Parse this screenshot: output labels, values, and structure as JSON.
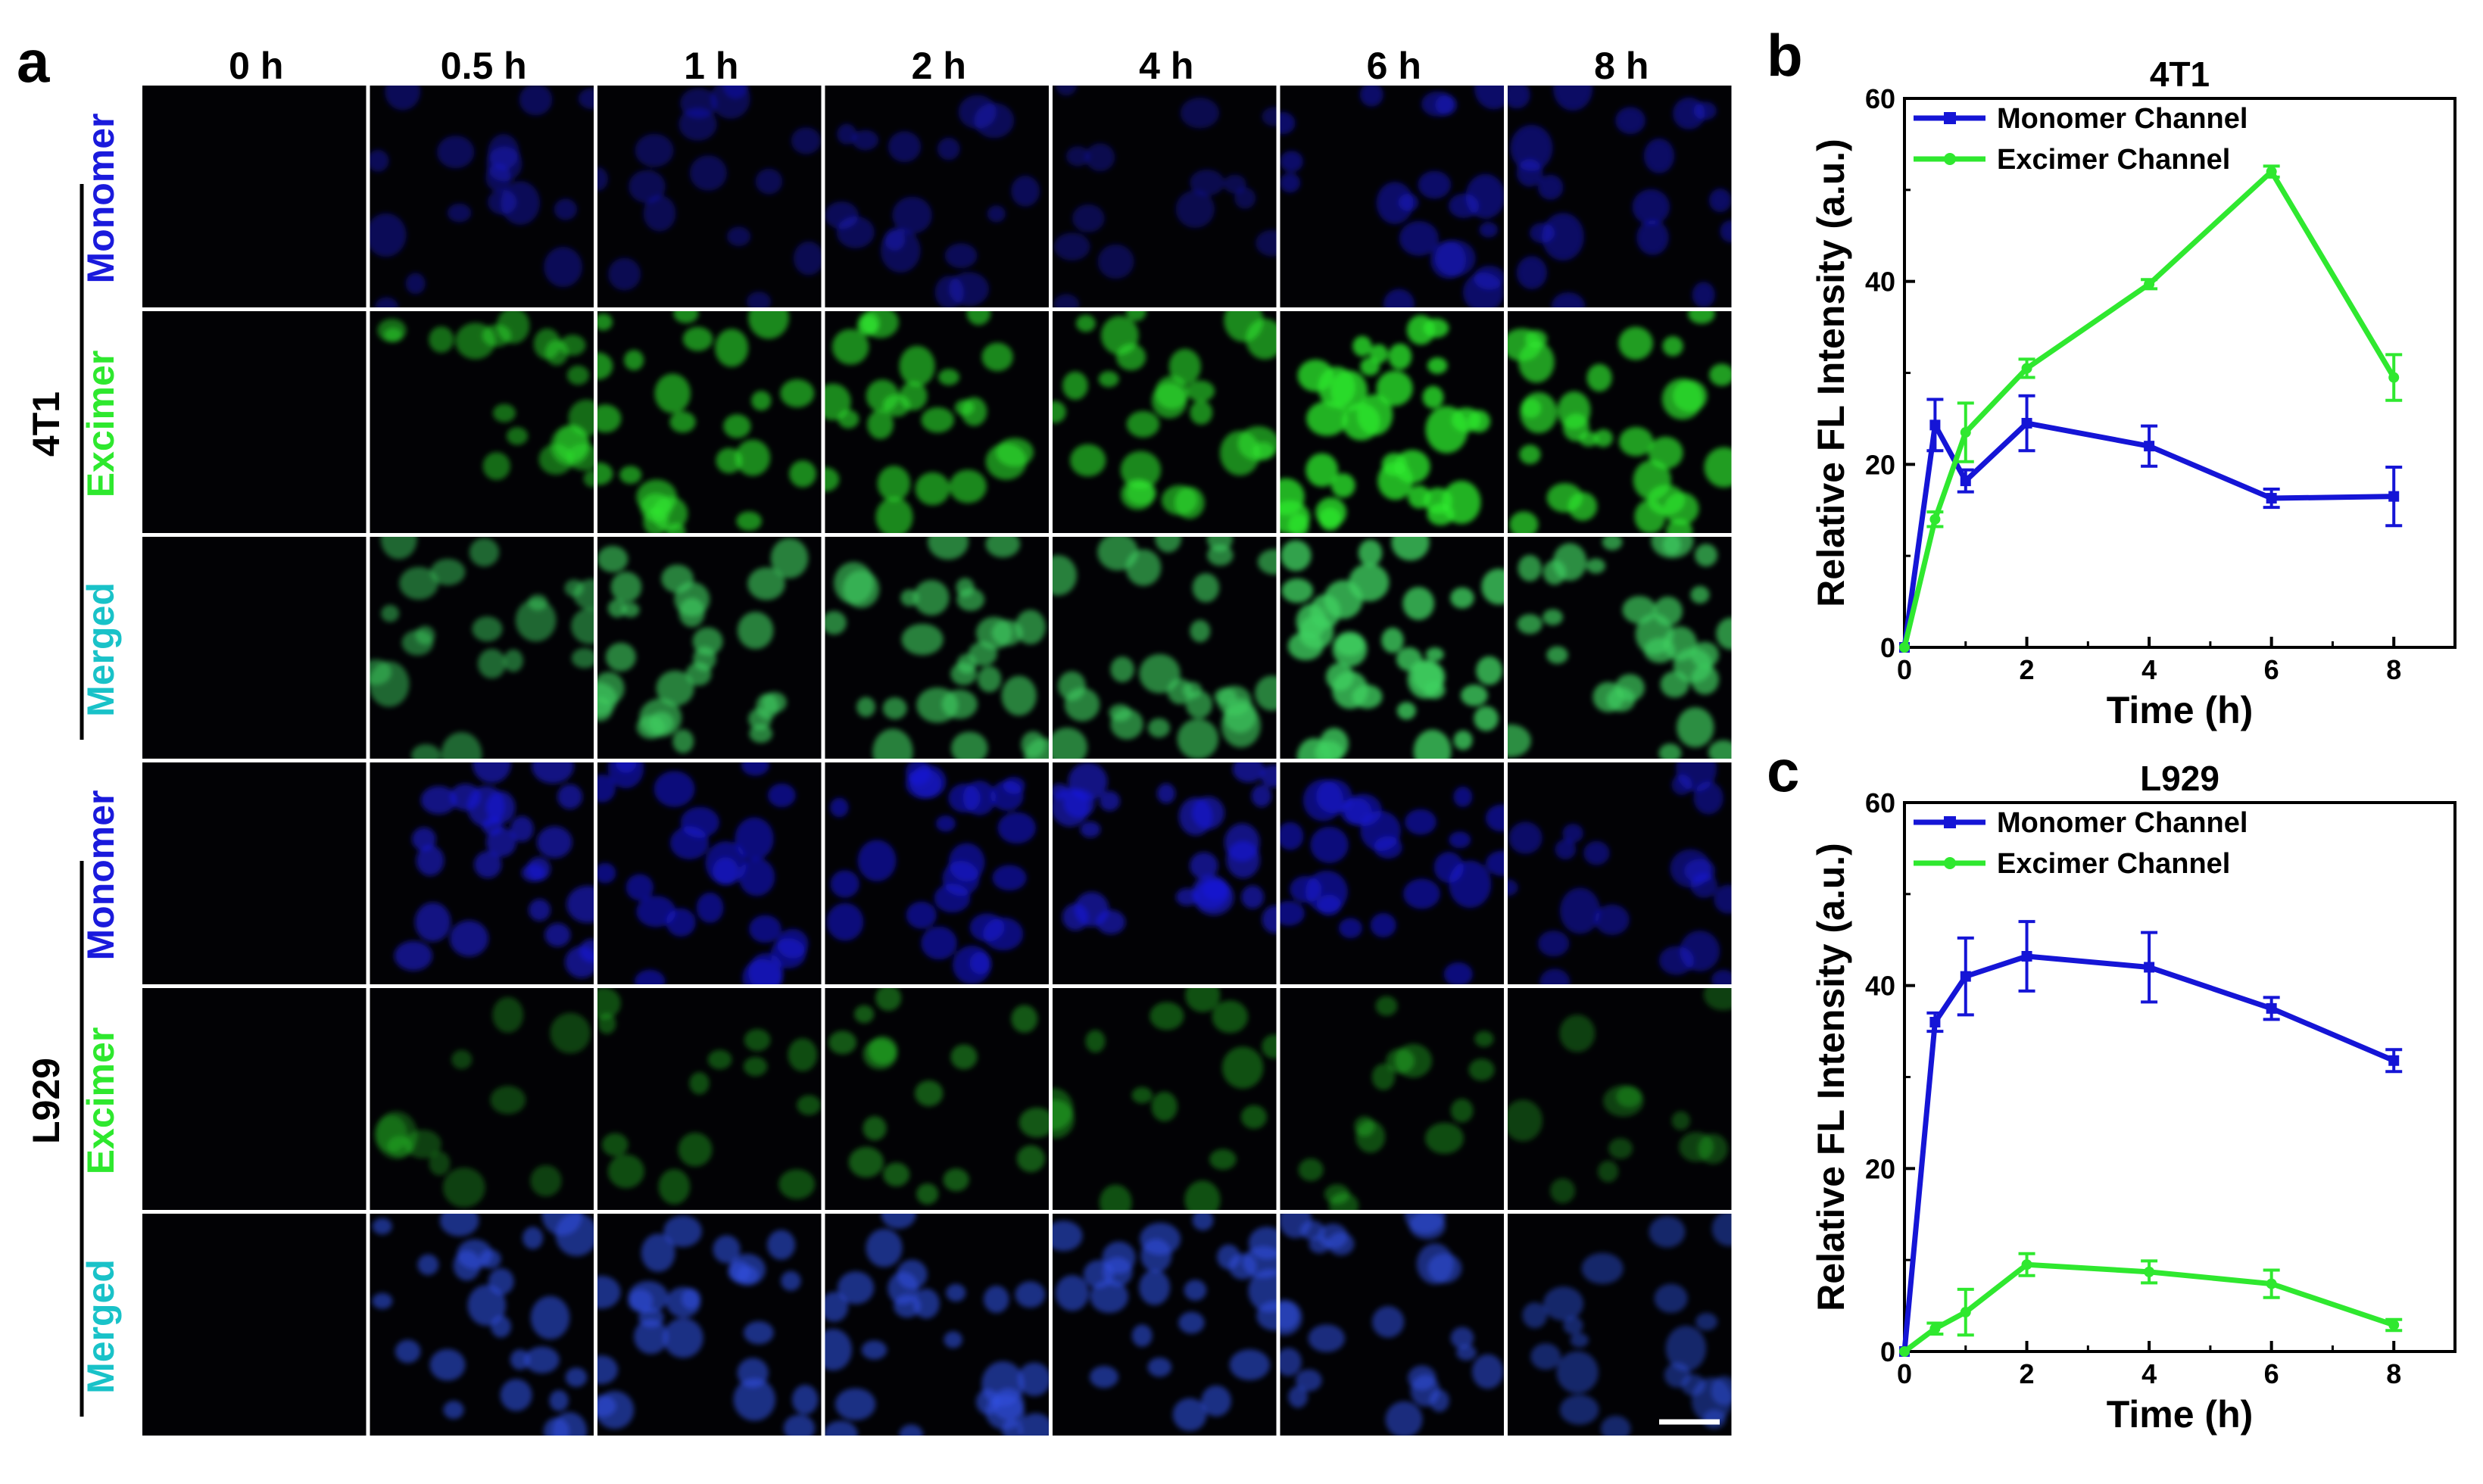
{
  "panel_a": {
    "label": "a",
    "columns": [
      "0 h",
      "0.5 h",
      "1 h",
      "2 h",
      "4 h",
      "6 h",
      "8 h"
    ],
    "groups": [
      {
        "cell_line": "4T1",
        "rows": [
          "Monomer",
          "Excimer",
          "Merged"
        ]
      },
      {
        "cell_line": "L929",
        "rows": [
          "Monomer",
          "Excimer",
          "Merged"
        ]
      }
    ],
    "channel_colors": {
      "Monomer": "#1a1adc",
      "Excimer": "#2ee82e",
      "Merged": "#19c2c8"
    },
    "intensity": {
      "4T1": {
        "Monomer": [
          0,
          0.22,
          0.18,
          0.22,
          0.15,
          0.35,
          0.32
        ],
        "Excimer": [
          0,
          0.35,
          0.55,
          0.55,
          0.55,
          0.85,
          0.7
        ],
        "Merged": [
          0,
          0.4,
          0.6,
          0.6,
          0.6,
          0.88,
          0.72
        ]
      },
      "L929": {
        "Monomer": [
          0,
          0.55,
          0.5,
          0.5,
          0.55,
          0.5,
          0.35
        ],
        "Excimer": [
          0,
          0.03,
          0.12,
          0.2,
          0.15,
          0.12,
          0.04
        ],
        "Merged": [
          0,
          0.55,
          0.55,
          0.55,
          0.55,
          0.5,
          0.35
        ]
      }
    }
  },
  "chart_data": [
    {
      "panel": "b",
      "type": "line",
      "title": "4T1",
      "xlabel": "Time (h)",
      "ylabel": "Relative FL Intensity (a.u.)",
      "xlim": [
        0,
        9
      ],
      "ylim": [
        0,
        60
      ],
      "xticks": [
        0,
        2,
        4,
        6,
        8
      ],
      "yticks": [
        0,
        20,
        40,
        60
      ],
      "legend": "top-left",
      "series": [
        {
          "name": "Monomer Channel",
          "color": "#1515d6",
          "marker": "square",
          "x": [
            0,
            0.5,
            1,
            2,
            4,
            6,
            8
          ],
          "y": [
            0,
            24.3,
            18.2,
            24.5,
            22.0,
            16.3,
            16.5
          ],
          "err": [
            0,
            2.8,
            1.2,
            3.0,
            2.2,
            1.0,
            3.2
          ]
        },
        {
          "name": "Excimer Channel",
          "color": "#2fe82f",
          "marker": "circle",
          "x": [
            0,
            0.5,
            1,
            2,
            4,
            6,
            8
          ],
          "y": [
            0,
            14.0,
            23.5,
            30.5,
            39.7,
            52.0,
            29.5
          ],
          "err": [
            0,
            0.8,
            3.2,
            1.0,
            0.5,
            0.6,
            2.5
          ]
        }
      ]
    },
    {
      "panel": "c",
      "type": "line",
      "title": "L929",
      "xlabel": "Time (h)",
      "ylabel": "Relative FL Intensity (a.u.)",
      "xlim": [
        0,
        9
      ],
      "ylim": [
        0,
        60
      ],
      "xticks": [
        0,
        2,
        4,
        6,
        8
      ],
      "yticks": [
        0,
        20,
        40,
        60
      ],
      "legend": "top-left",
      "series": [
        {
          "name": "Monomer Channel",
          "color": "#1515d6",
          "marker": "square",
          "x": [
            0,
            0.5,
            1,
            2,
            4,
            6,
            8
          ],
          "y": [
            0,
            36.0,
            41.0,
            43.2,
            42.0,
            37.5,
            31.8
          ],
          "err": [
            0,
            1.0,
            4.2,
            3.8,
            3.8,
            1.2,
            1.2
          ]
        },
        {
          "name": "Excimer Channel",
          "color": "#2fe82f",
          "marker": "circle",
          "x": [
            0,
            0.5,
            1,
            2,
            4,
            6,
            8
          ],
          "y": [
            0,
            2.5,
            4.3,
            9.5,
            8.7,
            7.4,
            2.9
          ],
          "err": [
            0,
            0.6,
            2.5,
            1.2,
            1.2,
            1.5,
            0.6
          ]
        }
      ]
    }
  ],
  "scale_bar": {
    "color": "#ffffff"
  }
}
